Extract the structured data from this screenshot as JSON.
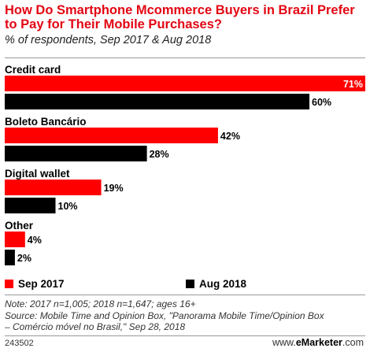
{
  "header": {
    "title": "How Do Smartphone Mcommerce Buyers in Brazil Prefer to Pay for Their Mobile Purchases?",
    "subtitle": "% of respondents, Sep 2017 & Aug 2018"
  },
  "legend": [
    {
      "label": "Sep 2017",
      "color": "#ff0000"
    },
    {
      "label": "Aug 2018",
      "color": "#000000"
    }
  ],
  "chart_data": {
    "type": "bar",
    "orientation": "horizontal",
    "categories": [
      "Credit card",
      "Boleto Bancário",
      "Digital wallet",
      "Other"
    ],
    "series": [
      {
        "name": "Sep 2017",
        "color": "#ff0000",
        "values": [
          71,
          42,
          19,
          4
        ],
        "labels": [
          "71%",
          "42%",
          "19%",
          "4%"
        ]
      },
      {
        "name": "Aug 2018",
        "color": "#000000",
        "values": [
          60,
          28,
          10,
          2
        ],
        "labels": [
          "60%",
          "28%",
          "10%",
          "2%"
        ]
      }
    ],
    "xlim": [
      0,
      71
    ],
    "grid": false,
    "legend_position": "bottom"
  },
  "notes": {
    "line1": "Note: 2017 n=1,005; 2018 n=1,647; ages 16+",
    "line2": "Source: Mobile Time and Opinion Box, \"Panorama Mobile Time/Opinion Box",
    "line3": "– Comércio móvel no Brasil,\" Sep 28, 2018"
  },
  "footer": {
    "chart_id": "243502",
    "brand_prefix": "www.",
    "brand_name": "eMarketer",
    "brand_suffix": ".com"
  }
}
